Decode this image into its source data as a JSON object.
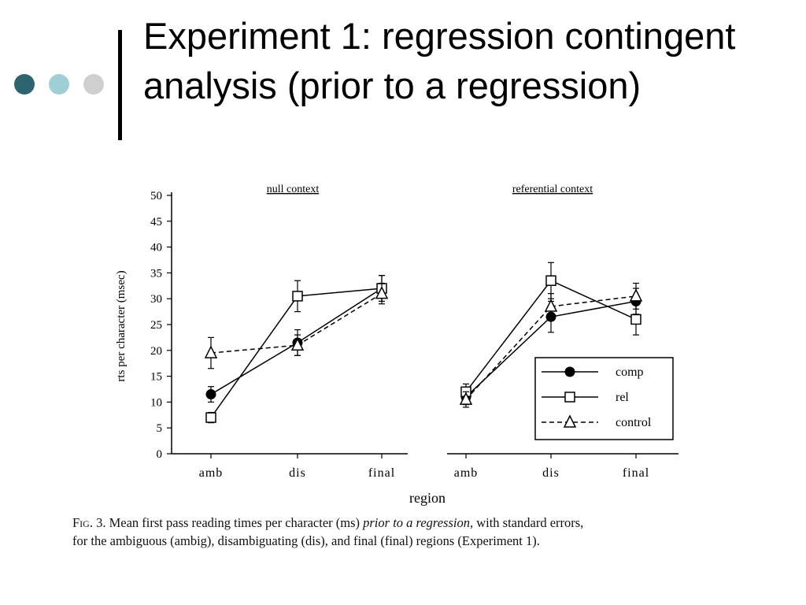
{
  "slide": {
    "title": "Experiment 1: regression contingent analysis (prior to a regression)",
    "bullet_colors": [
      "#2e6470",
      "#9fcfd4",
      "#cfcfcf"
    ]
  },
  "chart_data": {
    "type": "line",
    "ylabel": "rts per character (msec)",
    "xlabel": "region",
    "ylim": [
      0,
      50
    ],
    "yticks": [
      0,
      5,
      10,
      15,
      20,
      25,
      30,
      35,
      40,
      45,
      50
    ],
    "categories": [
      "amb",
      "dis",
      "final"
    ],
    "grid": false,
    "legend_position": "lower-right of right panel",
    "panels": [
      {
        "title": "null context",
        "series": [
          {
            "name": "comp",
            "marker": "filled-circle",
            "dash": "solid",
            "values": [
              11.5,
              21.5,
              32
            ],
            "errors": [
              1.5,
              2.5,
              2.5
            ]
          },
          {
            "name": "rel",
            "marker": "open-square",
            "dash": "solid",
            "values": [
              7,
              30.5,
              32
            ],
            "errors": [
              1,
              3,
              2.5
            ]
          },
          {
            "name": "control",
            "marker": "open-triangle",
            "dash": "dashed",
            "values": [
              19.5,
              21,
              31
            ],
            "errors": [
              3,
              2,
              2
            ]
          }
        ]
      },
      {
        "title": "referential context",
        "series": [
          {
            "name": "comp",
            "marker": "filled-circle",
            "dash": "solid",
            "values": [
              11,
              26.5,
              29.5
            ],
            "errors": [
              1.5,
              3,
              2.5
            ]
          },
          {
            "name": "rel",
            "marker": "open-square",
            "dash": "solid",
            "values": [
              12,
              33.5,
              26
            ],
            "errors": [
              1.5,
              3.5,
              3
            ]
          },
          {
            "name": "control",
            "marker": "open-triangle",
            "dash": "dashed",
            "values": [
              10.5,
              28.5,
              30.5
            ],
            "errors": [
              1.5,
              2.5,
              2.5
            ]
          }
        ]
      }
    ],
    "legend": [
      "comp",
      "rel",
      "control"
    ]
  },
  "caption": {
    "fig_label": "Fig. 3.",
    "line1_a": "Mean first pass reading times per character (ms)",
    "line1_em": "prior to a regression,",
    "line1_b": "with standard errors,",
    "line2": "for the ambiguous (ambig), disambiguating (dis), and final (final) regions (Experiment 1)."
  }
}
